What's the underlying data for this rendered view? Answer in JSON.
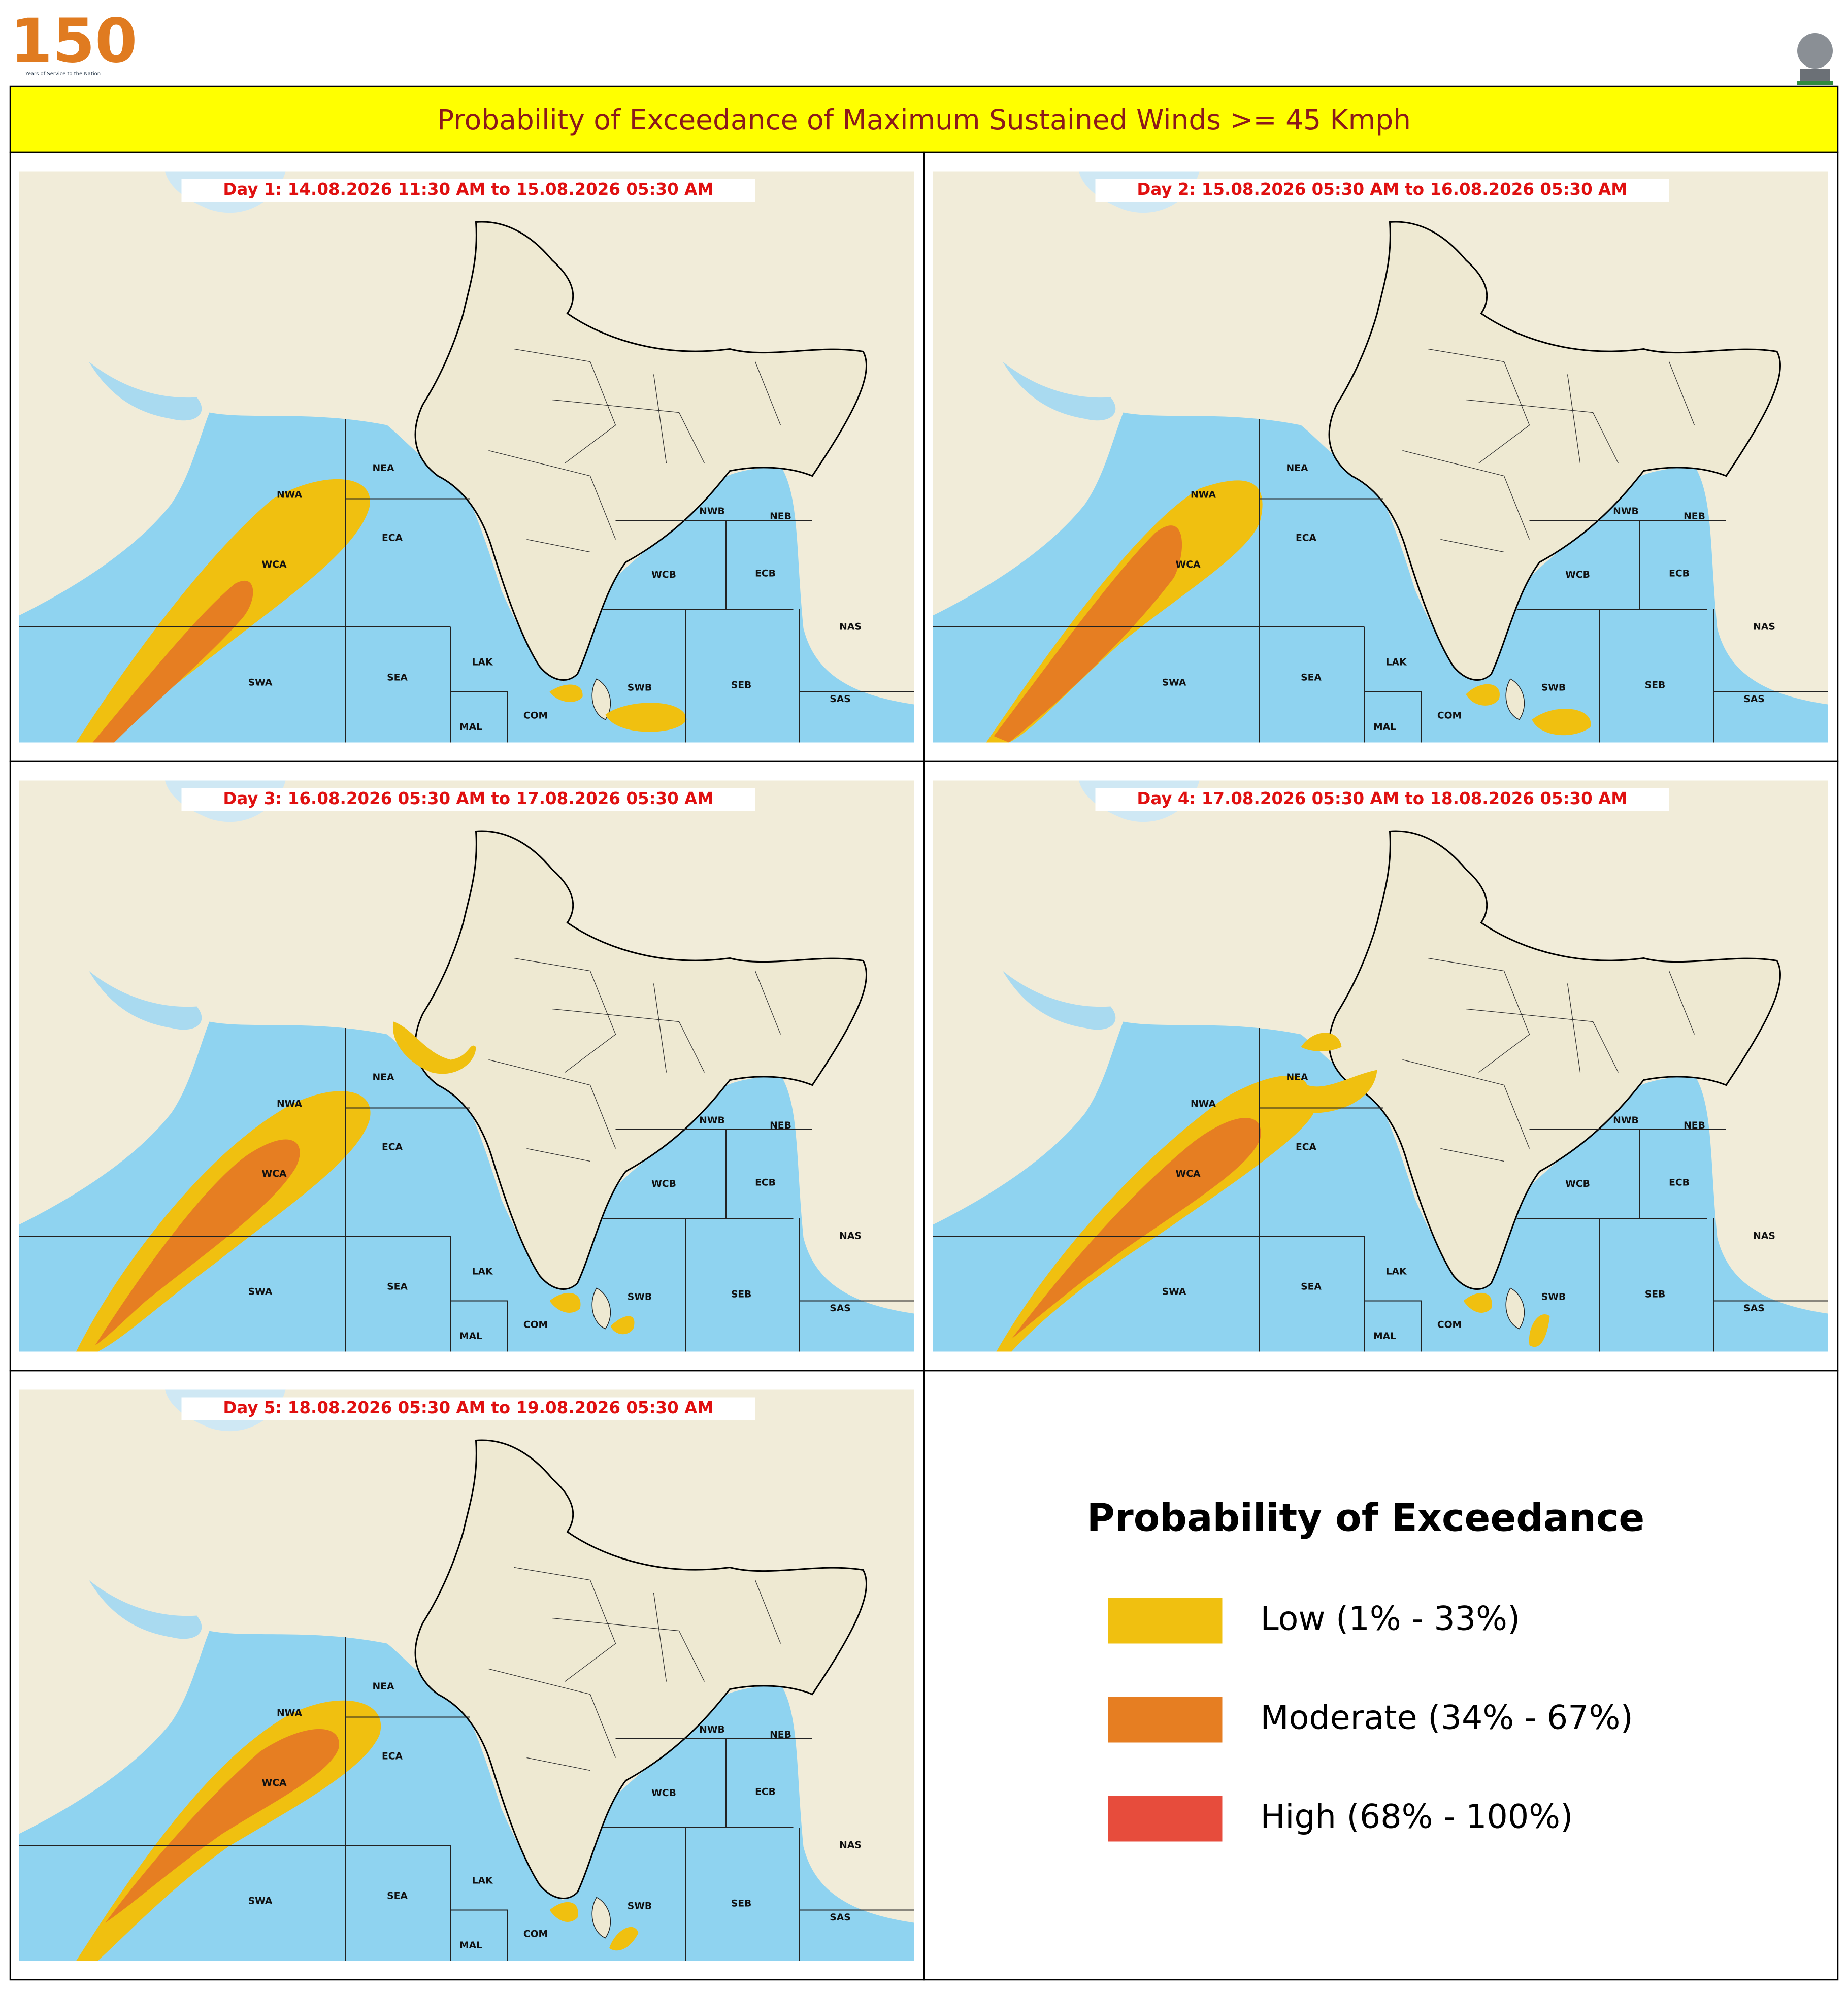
{
  "header": {
    "logo_number": "150",
    "logo_tagline": "Years of Service to the Nation"
  },
  "title": "Probability of Exceedance of Maximum Sustained Winds >= 45 Kmph",
  "region_labels": [
    "NWA",
    "NEA",
    "ECA",
    "WCA",
    "SWA",
    "SEA",
    "LAK",
    "MAL",
    "COM",
    "SWB",
    "SEB",
    "NWB",
    "NEB",
    "ECB",
    "WCB",
    "NAS",
    "SAS"
  ],
  "panels": [
    {
      "label": "Day 1: 14.08.2026 11:30 AM to 15.08.2026 05:30 AM"
    },
    {
      "label": "Day 2: 15.08.2026 05:30 AM to 16.08.2026 05:30 AM"
    },
    {
      "label": "Day 3: 16.08.2026 05:30 AM to 17.08.2026 05:30 AM"
    },
    {
      "label": "Day 4: 17.08.2026 05:30 AM to 18.08.2026 05:30 AM"
    },
    {
      "label": "Day 5: 18.08.2026 05:30 AM to 19.08.2026 05:30 AM"
    }
  ],
  "legend": {
    "title": "Probability of Exceedance",
    "items": [
      {
        "label": "Low (1% - 33%)",
        "color": "#f0c010"
      },
      {
        "label": "Moderate (34% - 67%)",
        "color": "#e67e22"
      },
      {
        "label": "High (68% - 100%)",
        "color": "#e74c3c"
      }
    ]
  }
}
